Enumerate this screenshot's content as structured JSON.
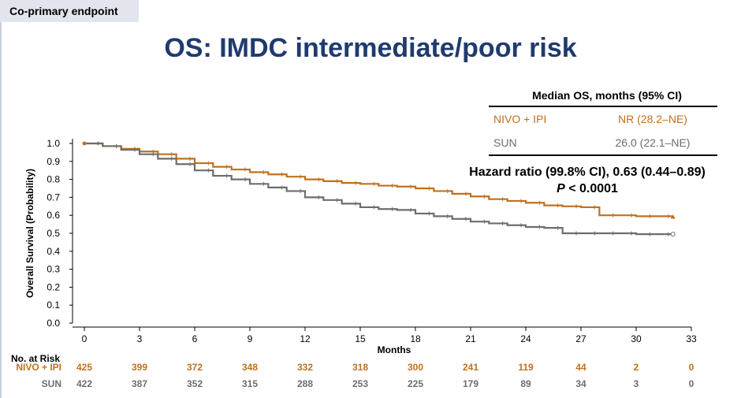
{
  "slide": {
    "tag": "Co-primary endpoint",
    "title": "OS: IMDC intermediate/poor risk"
  },
  "median_table": {
    "header": "Median OS, months (95% CI)",
    "rows": [
      {
        "arm": "NIVO + IPI",
        "value": "NR (28.2–NE)",
        "color": "#c0701e"
      },
      {
        "arm": "SUN",
        "value": "26.0 (22.1–NE)",
        "color": "#6d6d6d"
      }
    ]
  },
  "hazard": {
    "line1": "Hazard ratio (99.8% CI), 0.63 (0.44–0.89)",
    "p_label": "P",
    "p_value": "< 0.0001"
  },
  "risk_table": {
    "title": "No. at Risk",
    "rows": [
      {
        "arm": "NIVO + IPI",
        "color": "#c0701e",
        "values": [
          "425",
          "399",
          "372",
          "348",
          "332",
          "318",
          "300",
          "241",
          "119",
          "44",
          "2",
          "0"
        ]
      },
      {
        "arm": "SUN",
        "color": "#6d6d6d",
        "values": [
          "422",
          "387",
          "352",
          "315",
          "288",
          "253",
          "225",
          "179",
          "89",
          "34",
          "3",
          "0"
        ]
      }
    ]
  },
  "chart_data": {
    "type": "line",
    "xlabel": "Months",
    "ylabel": "Overall Survival (Probability)",
    "xlim": [
      0,
      33
    ],
    "ylim": [
      0,
      1
    ],
    "xticks": [
      0,
      3,
      6,
      9,
      12,
      15,
      18,
      21,
      24,
      27,
      30,
      33
    ],
    "yticks": [
      "0.0",
      "0.1",
      "0.2",
      "0.3",
      "0.4",
      "0.5",
      "0.6",
      "0.7",
      "0.8",
      "0.9",
      "1.0"
    ],
    "series": [
      {
        "name": "NIVO + IPI",
        "color": "#c0701e",
        "x": [
          0,
          1,
          2,
          3,
          4,
          5,
          6,
          7,
          8,
          9,
          10,
          11,
          12,
          13,
          14,
          15,
          16,
          17,
          18,
          19,
          20,
          21,
          22,
          23,
          24,
          25,
          26,
          27,
          28,
          29,
          30,
          31,
          32
        ],
        "y": [
          1.0,
          0.985,
          0.97,
          0.955,
          0.94,
          0.915,
          0.89,
          0.87,
          0.855,
          0.84,
          0.828,
          0.815,
          0.8,
          0.79,
          0.78,
          0.775,
          0.765,
          0.76,
          0.75,
          0.735,
          0.72,
          0.705,
          0.69,
          0.68,
          0.67,
          0.655,
          0.65,
          0.645,
          0.6,
          0.6,
          0.595,
          0.595,
          0.59
        ]
      },
      {
        "name": "SUN",
        "color": "#6d6d6d",
        "x": [
          0,
          1,
          2,
          3,
          4,
          5,
          6,
          7,
          8,
          9,
          10,
          11,
          12,
          13,
          14,
          15,
          16,
          17,
          18,
          19,
          20,
          21,
          22,
          23,
          24,
          25,
          26,
          27,
          28,
          29,
          30,
          31,
          32
        ],
        "y": [
          1.0,
          0.985,
          0.965,
          0.94,
          0.915,
          0.885,
          0.85,
          0.82,
          0.8,
          0.775,
          0.755,
          0.735,
          0.7,
          0.685,
          0.665,
          0.645,
          0.635,
          0.63,
          0.61,
          0.595,
          0.58,
          0.565,
          0.555,
          0.545,
          0.535,
          0.53,
          0.5,
          0.5,
          0.5,
          0.5,
          0.495,
          0.495,
          0.495
        ]
      }
    ]
  }
}
